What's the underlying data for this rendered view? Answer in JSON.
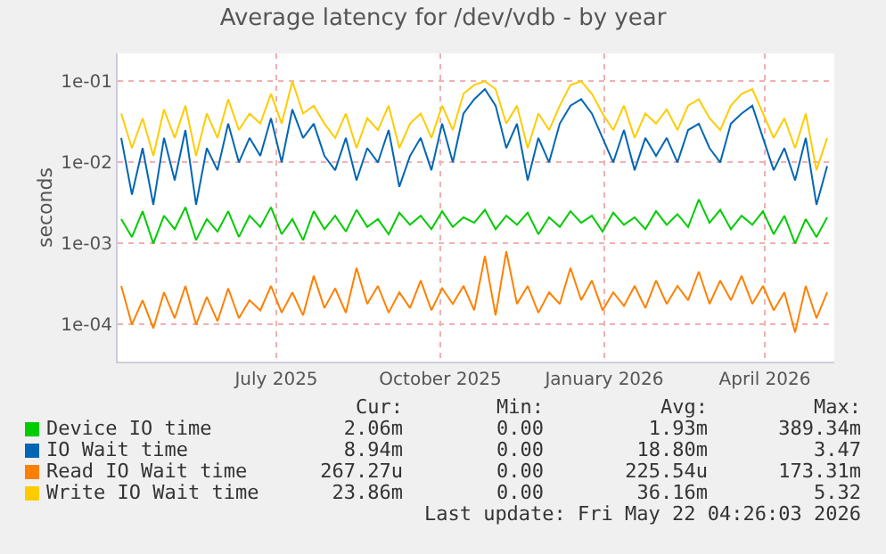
{
  "chart_data": {
    "type": "line",
    "title": "Average latency for /dev/vdb - by year",
    "ylabel": "seconds",
    "x": [
      "2025-04-20",
      "2025-04-26",
      "2025-05-02",
      "2025-05-08",
      "2025-05-14",
      "2025-05-20",
      "2025-05-26",
      "2025-06-01",
      "2025-06-07",
      "2025-06-13",
      "2025-06-19",
      "2025-06-25",
      "2025-07-01",
      "2025-07-07",
      "2025-07-13",
      "2025-07-19",
      "2025-07-25",
      "2025-07-31",
      "2025-08-06",
      "2025-08-12",
      "2025-08-18",
      "2025-08-24",
      "2025-08-30",
      "2025-09-05",
      "2025-09-11",
      "2025-09-17",
      "2025-09-23",
      "2025-09-29",
      "2025-10-05",
      "2025-10-11",
      "2025-10-17",
      "2025-10-23",
      "2025-10-29",
      "2025-11-04",
      "2025-11-10",
      "2025-11-16",
      "2025-11-22",
      "2025-11-28",
      "2025-12-04",
      "2025-12-10",
      "2025-12-16",
      "2025-12-22",
      "2025-12-28",
      "2026-01-03",
      "2026-01-09",
      "2026-01-15",
      "2026-01-21",
      "2026-01-27",
      "2026-02-02",
      "2026-02-08",
      "2026-02-14",
      "2026-02-20",
      "2026-02-26",
      "2026-03-04",
      "2026-03-10",
      "2026-03-16",
      "2026-03-22",
      "2026-03-28",
      "2026-04-03",
      "2026-04-09",
      "2026-04-15",
      "2026-04-21",
      "2026-04-27",
      "2026-05-03",
      "2026-05-09",
      "2026-05-15",
      "2026-05-21"
    ],
    "series": [
      {
        "name": "Device IO time",
        "color": "#00cc00",
        "values": [
          0.002,
          0.0012,
          0.0025,
          0.001,
          0.0022,
          0.0015,
          0.0028,
          0.0011,
          0.002,
          0.0014,
          0.0025,
          0.0012,
          0.0022,
          0.0016,
          0.0028,
          0.0013,
          0.002,
          0.0011,
          0.0025,
          0.0015,
          0.0022,
          0.0014,
          0.0026,
          0.0016,
          0.002,
          0.0013,
          0.0024,
          0.0017,
          0.0022,
          0.0015,
          0.0025,
          0.0016,
          0.0021,
          0.0018,
          0.0026,
          0.0015,
          0.0022,
          0.0017,
          0.0024,
          0.0013,
          0.0021,
          0.0016,
          0.0025,
          0.0018,
          0.0022,
          0.0014,
          0.0024,
          0.0017,
          0.0021,
          0.0015,
          0.0025,
          0.0017,
          0.0023,
          0.0016,
          0.0035,
          0.0018,
          0.0026,
          0.0015,
          0.0022,
          0.0017,
          0.0025,
          0.0013,
          0.0022,
          0.001,
          0.002,
          0.0012,
          0.0021
        ]
      },
      {
        "name": "IO Wait time",
        "color": "#0066b3",
        "values": [
          0.02,
          0.004,
          0.015,
          0.003,
          0.02,
          0.006,
          0.025,
          0.003,
          0.015,
          0.008,
          0.03,
          0.01,
          0.02,
          0.012,
          0.035,
          0.01,
          0.045,
          0.02,
          0.03,
          0.012,
          0.008,
          0.02,
          0.006,
          0.015,
          0.01,
          0.025,
          0.005,
          0.012,
          0.02,
          0.008,
          0.03,
          0.01,
          0.04,
          0.06,
          0.08,
          0.05,
          0.015,
          0.03,
          0.006,
          0.02,
          0.01,
          0.03,
          0.05,
          0.06,
          0.04,
          0.02,
          0.01,
          0.025,
          0.008,
          0.02,
          0.012,
          0.02,
          0.01,
          0.025,
          0.03,
          0.015,
          0.01,
          0.03,
          0.04,
          0.05,
          0.02,
          0.008,
          0.015,
          0.006,
          0.02,
          0.003,
          0.009
        ]
      },
      {
        "name": "Read IO Wait time",
        "color": "#ff8000",
        "values": [
          0.0003,
          0.0001,
          0.0002,
          9e-05,
          0.00025,
          0.00012,
          0.0003,
          0.0001,
          0.00022,
          0.00011,
          0.00028,
          0.00012,
          0.0002,
          0.00015,
          0.0003,
          0.00014,
          0.00025,
          0.00013,
          0.0004,
          0.00016,
          0.00028,
          0.00014,
          0.0005,
          0.00018,
          0.0003,
          0.00014,
          0.00025,
          0.00016,
          0.00035,
          0.00015,
          0.00028,
          0.00018,
          0.0003,
          0.00015,
          0.0007,
          0.00013,
          0.0008,
          0.00018,
          0.0003,
          0.00014,
          0.00025,
          0.00018,
          0.0005,
          0.0002,
          0.00035,
          0.00015,
          0.00025,
          0.00017,
          0.0003,
          0.00016,
          0.00035,
          0.00018,
          0.0003,
          0.0002,
          0.00045,
          0.00018,
          0.00035,
          0.0002,
          0.0004,
          0.00018,
          0.0003,
          0.00015,
          0.00025,
          8e-05,
          0.0003,
          0.00012,
          0.00025
        ]
      },
      {
        "name": "Write IO Wait time",
        "color": "#ffcc00",
        "values": [
          0.04,
          0.015,
          0.035,
          0.012,
          0.045,
          0.02,
          0.05,
          0.012,
          0.04,
          0.02,
          0.06,
          0.025,
          0.04,
          0.03,
          0.07,
          0.03,
          0.1,
          0.04,
          0.05,
          0.03,
          0.02,
          0.04,
          0.015,
          0.035,
          0.025,
          0.05,
          0.015,
          0.03,
          0.04,
          0.02,
          0.05,
          0.025,
          0.07,
          0.09,
          0.1,
          0.08,
          0.03,
          0.05,
          0.015,
          0.04,
          0.025,
          0.05,
          0.09,
          0.1,
          0.07,
          0.04,
          0.025,
          0.05,
          0.02,
          0.04,
          0.03,
          0.045,
          0.025,
          0.05,
          0.06,
          0.035,
          0.025,
          0.05,
          0.07,
          0.08,
          0.04,
          0.02,
          0.035,
          0.015,
          0.04,
          0.008,
          0.02
        ]
      }
    ],
    "xlim": [
      "2025-04-18",
      "2026-05-25"
    ],
    "xticks": [
      {
        "value": "2025-07-16",
        "label": "July 2025"
      },
      {
        "value": "2025-10-16",
        "label": "October 2025"
      },
      {
        "value": "2026-01-16",
        "label": "January 2026"
      },
      {
        "value": "2026-04-16",
        "label": "April 2026"
      }
    ],
    "ylim": [
      3.5e-05,
      0.22
    ],
    "yticks": [
      {
        "value": 0.0001,
        "label": "1e-04"
      },
      {
        "value": 0.001,
        "label": "1e-03"
      },
      {
        "value": 0.01,
        "label": "1e-02"
      },
      {
        "value": 0.1,
        "label": "1e-01"
      }
    ],
    "log": "y",
    "grid": true,
    "legend": "bottom",
    "marker": "none",
    "line_style": "solid",
    "annotations": [
      "Cur:",
      "Min:",
      "Avg:",
      "Max:",
      "2.06m",
      "0.00",
      "1.93m",
      "389.34m",
      "8.94m",
      "0.00",
      "18.80m",
      "3.47",
      "267.27u",
      "0.00",
      "225.54u",
      "173.31m",
      "23.86m",
      "0.00",
      "36.16m",
      "5.32",
      "Last update: Fri May 22 04:26:03 2026"
    ]
  }
}
